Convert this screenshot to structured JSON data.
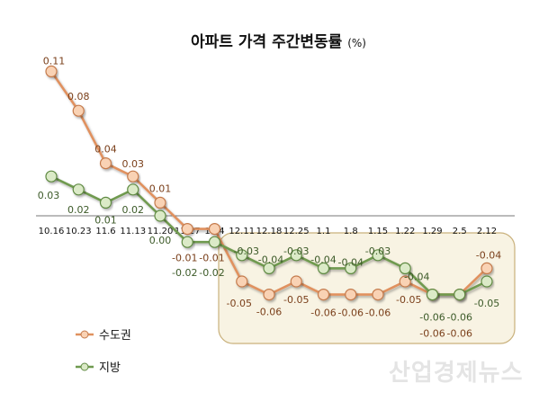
{
  "chart_data": {
    "type": "line",
    "title": "아파트 가격 주간변동률",
    "title_unit": "(%)",
    "categories": [
      "10.16",
      "10.23",
      "11.6",
      "11.13",
      "11.20",
      "11.27",
      "12.4",
      "12.11",
      "12.18",
      "12.25",
      "1.1",
      "1.8",
      "1.15",
      "1.22",
      "1.29",
      "2.5",
      "2.12"
    ],
    "series": [
      {
        "name": "수도권",
        "color": "#e0915f",
        "label_color": "#7a3f1a",
        "values": [
          0.11,
          0.08,
          0.04,
          0.03,
          0.01,
          -0.01,
          -0.01,
          -0.05,
          -0.06,
          -0.05,
          -0.06,
          -0.06,
          -0.06,
          -0.05,
          -0.06,
          -0.06,
          -0.04
        ]
      },
      {
        "name": "지방",
        "color": "#6f9a4f",
        "label_color": "#3c5a28",
        "values": [
          0.03,
          0.02,
          0.01,
          0.02,
          0.0,
          -0.02,
          -0.02,
          -0.03,
          -0.04,
          -0.03,
          -0.04,
          -0.04,
          -0.03,
          -0.04,
          -0.06,
          -0.06,
          -0.05
        ]
      }
    ],
    "data_labels": true,
    "grid": false,
    "legend_position": "bottom-left",
    "highlight_range": [
      "12.11",
      "2.12"
    ]
  },
  "watermark": "산업경제뉴스"
}
